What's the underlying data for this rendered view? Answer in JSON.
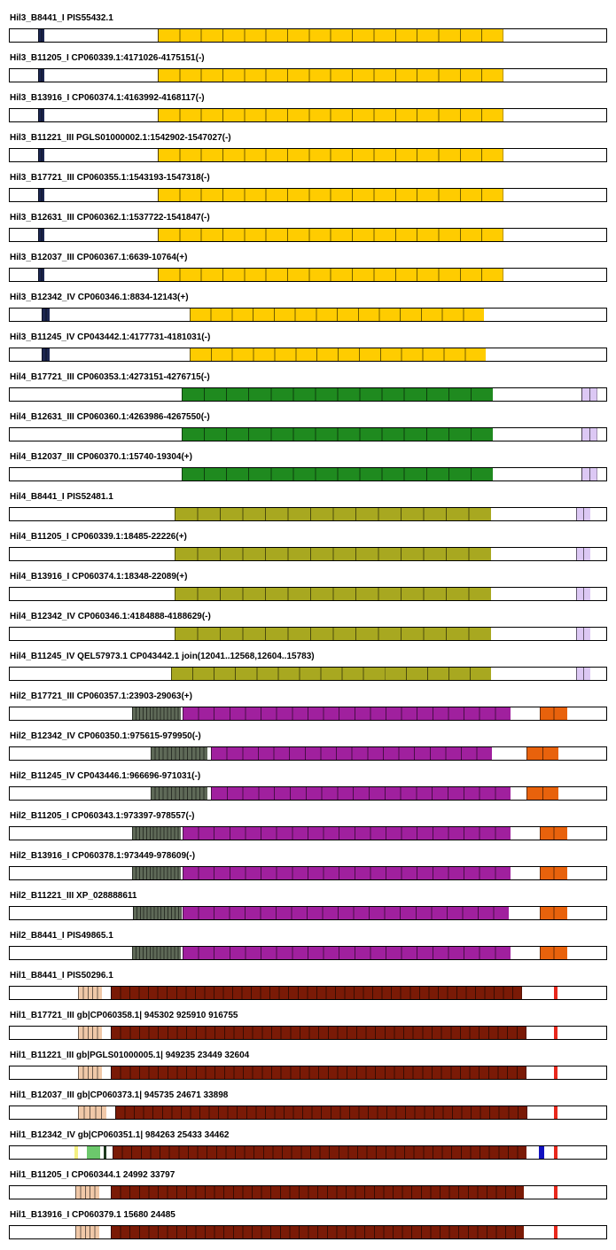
{
  "palette": {
    "hil3": "#ffcc00",
    "hil4_green": "#1f8a1f",
    "hil4_olive": "#a8a820",
    "hil2_magenta": "#a0209e",
    "hil2_grey": "#5f6a58",
    "hil2_orange": "#e8620c",
    "hil1_brown": "#7a1a06",
    "hil1_tan": "#f0c8a8",
    "navy": "#1c2650",
    "lavender": "#dcc8f4",
    "red": "#e8281c",
    "blue": "#1010c0",
    "lightgreen": "#6cc86c",
    "yellow": "#f4f080"
  },
  "tracks": [
    {
      "label": "Hil3_B8441_I PIS55432.1",
      "segments": [
        {
          "start": 0.047,
          "end": 0.058,
          "color": "#1c2650",
          "stripes": 2
        },
        {
          "start": 0.248,
          "end": 0.825,
          "color": "#ffcc00",
          "stripes": 16
        }
      ]
    },
    {
      "label": "Hil3_B11205_I CP060339.1:4171026-4175151(-)",
      "segments": [
        {
          "start": 0.047,
          "end": 0.058,
          "color": "#1c2650",
          "stripes": 2
        },
        {
          "start": 0.248,
          "end": 0.825,
          "color": "#ffcc00",
          "stripes": 16
        }
      ]
    },
    {
      "label": "Hil3_B13916_I CP060374.1:4163992-4168117(-)",
      "segments": [
        {
          "start": 0.047,
          "end": 0.058,
          "color": "#1c2650",
          "stripes": 2
        },
        {
          "start": 0.248,
          "end": 0.825,
          "color": "#ffcc00",
          "stripes": 16
        }
      ]
    },
    {
      "label": "Hil3_B11221_III PGLS01000002.1:1542902-1547027(-)",
      "segments": [
        {
          "start": 0.047,
          "end": 0.058,
          "color": "#1c2650",
          "stripes": 2
        },
        {
          "start": 0.248,
          "end": 0.825,
          "color": "#ffcc00",
          "stripes": 16
        }
      ]
    },
    {
      "label": "Hil3_B17721_III CP060355.1:1543193-1547318(-)",
      "segments": [
        {
          "start": 0.047,
          "end": 0.058,
          "color": "#1c2650",
          "stripes": 2
        },
        {
          "start": 0.248,
          "end": 0.825,
          "color": "#ffcc00",
          "stripes": 16
        }
      ]
    },
    {
      "label": "Hil3_B12631_III CP060362.1:1537722-1541847(-)",
      "segments": [
        {
          "start": 0.047,
          "end": 0.058,
          "color": "#1c2650",
          "stripes": 2
        },
        {
          "start": 0.248,
          "end": 0.825,
          "color": "#ffcc00",
          "stripes": 16
        }
      ]
    },
    {
      "label": "Hil3_B12037_III CP060367.1:6639-10764(+)",
      "segments": [
        {
          "start": 0.047,
          "end": 0.058,
          "color": "#1c2650",
          "stripes": 2
        },
        {
          "start": 0.248,
          "end": 0.825,
          "color": "#ffcc00",
          "stripes": 16
        }
      ]
    },
    {
      "label": "Hil3_B12342_IV CP060346.1:8834-12143(+)",
      "segments": [
        {
          "start": 0.053,
          "end": 0.067,
          "color": "#1c2650",
          "stripes": 2
        },
        {
          "start": 0.3,
          "end": 0.792,
          "color": "#ffcc00",
          "stripes": 14
        }
      ]
    },
    {
      "label": "Hil3_B11245_IV CP043442.1:4177731-4181031(-)",
      "segments": [
        {
          "start": 0.053,
          "end": 0.067,
          "color": "#1c2650",
          "stripes": 2
        },
        {
          "start": 0.3,
          "end": 0.795,
          "color": "#ffcc00",
          "stripes": 14
        }
      ]
    },
    {
      "label": "Hil4_B17721_III CP060353.1:4273151-4276715(-)",
      "segments": [
        {
          "start": 0.287,
          "end": 0.807,
          "color": "#1f8a1f",
          "stripes": 14
        },
        {
          "start": 0.956,
          "end": 0.982,
          "color": "#dcc8f4",
          "stripes": 2
        }
      ]
    },
    {
      "label": "Hil4_B12631_III CP060360.1:4263986-4267550(-)",
      "segments": [
        {
          "start": 0.287,
          "end": 0.807,
          "color": "#1f8a1f",
          "stripes": 14
        },
        {
          "start": 0.956,
          "end": 0.982,
          "color": "#dcc8f4",
          "stripes": 2
        }
      ]
    },
    {
      "label": "Hil4_B12037_III CP060370.1:15740-19304(+)",
      "segments": [
        {
          "start": 0.287,
          "end": 0.807,
          "color": "#1f8a1f",
          "stripes": 14
        },
        {
          "start": 0.956,
          "end": 0.982,
          "color": "#dcc8f4",
          "stripes": 2
        }
      ]
    },
    {
      "label": "Hil4_B8441_I PIS52481.1",
      "segments": [
        {
          "start": 0.275,
          "end": 0.804,
          "color": "#a8a820",
          "stripes": 14
        },
        {
          "start": 0.947,
          "end": 0.971,
          "color": "#dcc8f4",
          "stripes": 2
        }
      ]
    },
    {
      "label": "Hil4_B11205_I CP060339.1:18485-22226(+)",
      "segments": [
        {
          "start": 0.275,
          "end": 0.804,
          "color": "#a8a820",
          "stripes": 14
        },
        {
          "start": 0.947,
          "end": 0.971,
          "color": "#dcc8f4",
          "stripes": 2
        }
      ]
    },
    {
      "label": "Hil4_B13916_I CP060374.1:18348-22089(+)",
      "segments": [
        {
          "start": 0.275,
          "end": 0.804,
          "color": "#a8a820",
          "stripes": 14
        },
        {
          "start": 0.947,
          "end": 0.971,
          "color": "#dcc8f4",
          "stripes": 2
        }
      ]
    },
    {
      "label": "Hil4_B12342_IV CP060346.1:4184888-4188629(-)",
      "segments": [
        {
          "start": 0.275,
          "end": 0.804,
          "color": "#a8a820",
          "stripes": 14
        },
        {
          "start": 0.947,
          "end": 0.971,
          "color": "#dcc8f4",
          "stripes": 2
        }
      ]
    },
    {
      "label": "Hil4_B11245_IV QEL57973.1 CP043442.1 join(12041..12568,12604..15783)",
      "segments": [
        {
          "start": 0.269,
          "end": 0.804,
          "color": "#a8a820",
          "stripes": 15
        },
        {
          "start": 0.947,
          "end": 0.971,
          "color": "#dcc8f4",
          "stripes": 2
        }
      ]
    },
    {
      "label": "Hil2_B17721_III CP060357.1:23903-29063(+)",
      "segments": [
        {
          "start": 0.204,
          "end": 0.286,
          "color": "#5f6a58",
          "stripes": 14
        },
        {
          "start": 0.289,
          "end": 0.837,
          "color": "#a0209e",
          "stripes": 21
        },
        {
          "start": 0.886,
          "end": 0.932,
          "color": "#e8620c",
          "stripes": 2
        }
      ]
    },
    {
      "label": "Hil2_B12342_IV CP060350.1:975615-979950(-)",
      "segments": [
        {
          "start": 0.235,
          "end": 0.33,
          "color": "#5f6a58",
          "stripes": 14
        },
        {
          "start": 0.336,
          "end": 0.806,
          "color": "#a0209e",
          "stripes": 18
        },
        {
          "start": 0.864,
          "end": 0.917,
          "color": "#e8620c",
          "stripes": 2
        }
      ]
    },
    {
      "label": "Hil2_B11245_IV CP043446.1:966696-971031(-)",
      "segments": [
        {
          "start": 0.235,
          "end": 0.33,
          "color": "#5f6a58",
          "stripes": 14
        },
        {
          "start": 0.336,
          "end": 0.837,
          "color": "#a0209e",
          "stripes": 19
        },
        {
          "start": 0.864,
          "end": 0.917,
          "color": "#e8620c",
          "stripes": 2
        }
      ]
    },
    {
      "label": "Hil2_B11205_I CP060343.1:973397-978557(-)",
      "segments": [
        {
          "start": 0.204,
          "end": 0.286,
          "color": "#5f6a58",
          "stripes": 14
        },
        {
          "start": 0.289,
          "end": 0.837,
          "color": "#a0209e",
          "stripes": 21
        },
        {
          "start": 0.886,
          "end": 0.932,
          "color": "#e8620c",
          "stripes": 2
        }
      ]
    },
    {
      "label": "Hil2_B13916_I CP060378.1:973449-978609(-)",
      "segments": [
        {
          "start": 0.204,
          "end": 0.286,
          "color": "#5f6a58",
          "stripes": 14
        },
        {
          "start": 0.289,
          "end": 0.837,
          "color": "#a0209e",
          "stripes": 21
        },
        {
          "start": 0.886,
          "end": 0.932,
          "color": "#e8620c",
          "stripes": 2
        }
      ]
    },
    {
      "label": "Hil2_B11221_III XP_028888611",
      "segments": [
        {
          "start": 0.206,
          "end": 0.287,
          "color": "#5f6a58",
          "stripes": 14
        },
        {
          "start": 0.289,
          "end": 0.834,
          "color": "#a0209e",
          "stripes": 21
        },
        {
          "start": 0.886,
          "end": 0.932,
          "color": "#e8620c",
          "stripes": 2
        }
      ]
    },
    {
      "label": "Hil2_B8441_I PIS49865.1",
      "segments": [
        {
          "start": 0.204,
          "end": 0.286,
          "color": "#5f6a58",
          "stripes": 14
        },
        {
          "start": 0.289,
          "end": 0.837,
          "color": "#a0209e",
          "stripes": 21
        },
        {
          "start": 0.886,
          "end": 0.932,
          "color": "#e8620c",
          "stripes": 2
        }
      ]
    },
    {
      "label": "Hil1_B8441_I PIS50296.1",
      "segments": [
        {
          "start": 0.114,
          "end": 0.154,
          "color": "#f0c8a8",
          "stripes": 5
        },
        {
          "start": 0.169,
          "end": 0.856,
          "color": "#7a1a06",
          "stripes": 44
        },
        {
          "start": 0.91,
          "end": 0.916,
          "color": "#e8281c",
          "stripes": 1
        }
      ]
    },
    {
      "label": "Hil1_B17721_III gb|CP060358.1| 945302 925910 916755",
      "segments": [
        {
          "start": 0.114,
          "end": 0.154,
          "color": "#f0c8a8",
          "stripes": 5
        },
        {
          "start": 0.169,
          "end": 0.863,
          "color": "#7a1a06",
          "stripes": 44
        },
        {
          "start": 0.91,
          "end": 0.916,
          "color": "#e8281c",
          "stripes": 1
        }
      ]
    },
    {
      "label": "Hil1_B11221_III gb|PGLS01000005.1| 949235 23449 32604",
      "segments": [
        {
          "start": 0.114,
          "end": 0.154,
          "color": "#f0c8a8",
          "stripes": 5
        },
        {
          "start": 0.169,
          "end": 0.863,
          "color": "#7a1a06",
          "stripes": 44
        },
        {
          "start": 0.91,
          "end": 0.916,
          "color": "#e8281c",
          "stripes": 1
        }
      ]
    },
    {
      "label": "Hil1_B12037_III gb|CP060373.1| 945735 24671 33898",
      "segments": [
        {
          "start": 0.114,
          "end": 0.162,
          "color": "#f0c8a8",
          "stripes": 5
        },
        {
          "start": 0.177,
          "end": 0.865,
          "color": "#7a1a06",
          "stripes": 44
        },
        {
          "start": 0.91,
          "end": 0.916,
          "color": "#e8281c",
          "stripes": 1
        }
      ]
    },
    {
      "label": "Hil1_B12342_IV gb|CP060351.1| 984263 25433 34462",
      "segments": [
        {
          "start": 0.108,
          "end": 0.114,
          "color": "#f4f080",
          "stripes": 1
        },
        {
          "start": 0.129,
          "end": 0.151,
          "color": "#6cc86c",
          "stripes": 1
        },
        {
          "start": 0.157,
          "end": 0.161,
          "color": "#1f3a1f",
          "stripes": 1
        },
        {
          "start": 0.172,
          "end": 0.864,
          "color": "#7a1a06",
          "stripes": 44
        },
        {
          "start": 0.884,
          "end": 0.893,
          "color": "#1010c0",
          "stripes": 1
        },
        {
          "start": 0.91,
          "end": 0.916,
          "color": "#e8281c",
          "stripes": 1
        }
      ]
    },
    {
      "label": "Hil1_B11205_I CP060344.1 24992 33797",
      "segments": [
        {
          "start": 0.11,
          "end": 0.15,
          "color": "#f0c8a8",
          "stripes": 5
        },
        {
          "start": 0.169,
          "end": 0.86,
          "color": "#7a1a06",
          "stripes": 44
        },
        {
          "start": 0.91,
          "end": 0.916,
          "color": "#e8281c",
          "stripes": 1
        }
      ]
    },
    {
      "label": "Hil1_B13916_I CP060379.1 15680 24485",
      "segments": [
        {
          "start": 0.11,
          "end": 0.15,
          "color": "#f0c8a8",
          "stripes": 5
        },
        {
          "start": 0.169,
          "end": 0.86,
          "color": "#7a1a06",
          "stripes": 44
        },
        {
          "start": 0.91,
          "end": 0.916,
          "color": "#e8281c",
          "stripes": 1
        }
      ]
    }
  ]
}
